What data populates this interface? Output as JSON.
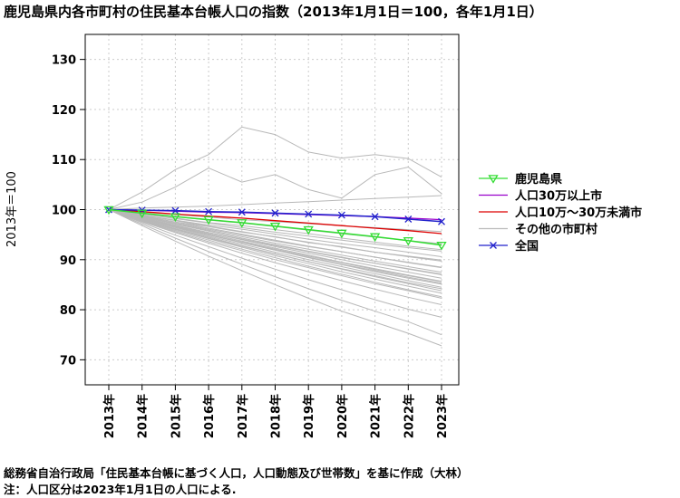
{
  "title": "鹿児島県内各市町村の住民基本台帳人口の指数（2013年1月1日＝100，各年1月1日）",
  "footer": [
    "総務省自治行政局「住民基本台帳に基づく人口，人口動態及び世帯数」を基に作成（大林）",
    "注：人口区分は2023年1月1日の人口による."
  ],
  "chart_data": {
    "type": "line",
    "title": "鹿児島県内各市町村の住民基本台帳人口の指数（2013年1月1日＝100，各年1月1日）",
    "xlabel": "",
    "ylabel": "2013年＝100",
    "categories": [
      "2013年",
      "2014年",
      "2015年",
      "2016年",
      "2017年",
      "2018年",
      "2019年",
      "2020年",
      "2021年",
      "2022年",
      "2023年"
    ],
    "ylim": [
      65,
      135
    ],
    "yticks": [
      70,
      80,
      90,
      100,
      110,
      120,
      130
    ],
    "grid": true,
    "legend_position": "right",
    "series": [
      {
        "name": "鹿児島県",
        "color": "#33dd33",
        "marker": "triangle-down",
        "values": [
          100,
          99.3,
          98.6,
          98.0,
          97.4,
          96.7,
          96.0,
          95.3,
          94.6,
          93.8,
          92.9
        ]
      },
      {
        "name": "人口30万以上市",
        "color": "#9900cc",
        "marker": "none",
        "values": [
          100,
          99.9,
          99.7,
          99.5,
          99.4,
          99.2,
          99.0,
          98.8,
          98.6,
          98.3,
          98.0
        ]
      },
      {
        "name": "人口10万～30万未満市",
        "color": "#dd0000",
        "marker": "none",
        "values": [
          100,
          99.6,
          99.1,
          98.7,
          98.3,
          97.8,
          97.3,
          96.8,
          96.3,
          95.8,
          95.2
        ]
      },
      {
        "name": "その他の市町村",
        "color": "#bbbbbb",
        "marker": "none",
        "values": [
          100,
          98.9,
          97.8,
          96.7,
          95.6,
          94.5,
          93.4,
          92.3,
          91.2,
          90.1,
          89.0
        ]
      },
      {
        "name": "全国",
        "color": "#2222cc",
        "marker": "x",
        "values": [
          100,
          99.9,
          99.8,
          99.6,
          99.5,
          99.3,
          99.1,
          98.9,
          98.6,
          98.1,
          97.6
        ]
      }
    ],
    "other_municipalities": [
      [
        100,
        103.5,
        108,
        111,
        116.5,
        115,
        111.5,
        110.3,
        111,
        110.2,
        106.5
      ],
      [
        100,
        101.5,
        104.5,
        108.3,
        105.5,
        107,
        104,
        102.3,
        107,
        108.5,
        103.2
      ],
      [
        100,
        100.3,
        100.5,
        100.7,
        101,
        101.3,
        101.6,
        101.9,
        102.2,
        102.5,
        102.8
      ],
      [
        100,
        99.5,
        99,
        98.5,
        98,
        97.6,
        97.2,
        96.8,
        96.4,
        96,
        95.6
      ],
      [
        100,
        99.3,
        98.6,
        97.9,
        97.3,
        96.6,
        95.9,
        95.2,
        94.5,
        93.8,
        93.2
      ],
      [
        100,
        99.1,
        98.2,
        97.3,
        96.4,
        95.5,
        94.7,
        93.9,
        93.1,
        92.4,
        91.7
      ],
      [
        100,
        98.9,
        97.8,
        96.7,
        95.6,
        94.5,
        93.5,
        92.5,
        91.5,
        90.6,
        89.7
      ],
      [
        100,
        98.8,
        97.5,
        96.3,
        95.1,
        93.9,
        92.7,
        91.6,
        90.5,
        89.4,
        88.4
      ],
      [
        100,
        98.6,
        97.2,
        95.9,
        94.6,
        93.3,
        92.1,
        90.9,
        89.7,
        88.6,
        87.5
      ],
      [
        100,
        98.5,
        97.1,
        95.7,
        94.3,
        93,
        91.7,
        90.5,
        89.3,
        88.1,
        87
      ],
      [
        100,
        98.4,
        96.9,
        95.4,
        94,
        92.6,
        91.3,
        90,
        88.7,
        87.5,
        86.3
      ],
      [
        100,
        98.3,
        96.7,
        95.2,
        93.7,
        92.3,
        90.9,
        89.5,
        88.2,
        86.9,
        85.7
      ],
      [
        100,
        98.2,
        96.5,
        94.9,
        93.4,
        91.9,
        90.4,
        89,
        87.6,
        86.3,
        85.1
      ],
      [
        100,
        98.1,
        96.4,
        94.7,
        93.1,
        91.5,
        90,
        88.6,
        87.2,
        85.8,
        84.5
      ],
      [
        100,
        98,
        96.2,
        94.5,
        92.8,
        91.2,
        89.6,
        88.1,
        86.6,
        85.2,
        83.8
      ],
      [
        100,
        97.9,
        96,
        94.2,
        92.5,
        90.8,
        89.2,
        87.6,
        86.1,
        84.7,
        83.3
      ],
      [
        100,
        97.8,
        95.8,
        93.9,
        92.1,
        90.4,
        88.7,
        87.1,
        85.5,
        84,
        82.6
      ],
      [
        100,
        97.6,
        95.4,
        93.3,
        91.3,
        89.4,
        87.6,
        85.8,
        84.1,
        82.5,
        81
      ],
      [
        100,
        97.4,
        94.9,
        92.6,
        90.3,
        88.1,
        86,
        84,
        82,
        80.1,
        78.5
      ],
      [
        100,
        97.1,
        94.3,
        91.6,
        89.1,
        86.6,
        84.2,
        81.9,
        79.7,
        77.6,
        75
      ],
      [
        100,
        96.8,
        93.7,
        90.7,
        87.8,
        85,
        82.3,
        79.7,
        77.5,
        75.3,
        72.8
      ],
      [
        100,
        99.2,
        98.3,
        97.4,
        96.8,
        96,
        95.2,
        94.3,
        93.5,
        92.7,
        92
      ],
      [
        100,
        98.7,
        97.5,
        96.6,
        95.5,
        94.6,
        93.4,
        92.6,
        91.5,
        90.7,
        89.9
      ],
      [
        100,
        98.9,
        97.9,
        96.9,
        96.1,
        95.1,
        94.1,
        93.2,
        92.4,
        91.5,
        90.6
      ],
      [
        100,
        98.6,
        97.3,
        96.1,
        94.9,
        93.7,
        92.6,
        91.6,
        90.5,
        89.5,
        88.5
      ],
      [
        100,
        98.3,
        96.8,
        95.4,
        94.1,
        92.8,
        91.6,
        90.4,
        89.3,
        88.2,
        87.1
      ],
      [
        100,
        98.4,
        96.6,
        95,
        93.5,
        92.1,
        90.7,
        89.4,
        88,
        86.8,
        85.6
      ],
      [
        100,
        98.2,
        96.6,
        95,
        93.4,
        91.9,
        90.5,
        89.1,
        87.8,
        86.5,
        85.3
      ],
      [
        100,
        97.9,
        96.1,
        94.3,
        92.7,
        91.1,
        89.6,
        88.2,
        86.8,
        85.4,
        84.2
      ],
      [
        100,
        97.7,
        95.6,
        93.6,
        91.8,
        90,
        88.4,
        86.8,
        85.2,
        83.8,
        82.3
      ]
    ]
  }
}
